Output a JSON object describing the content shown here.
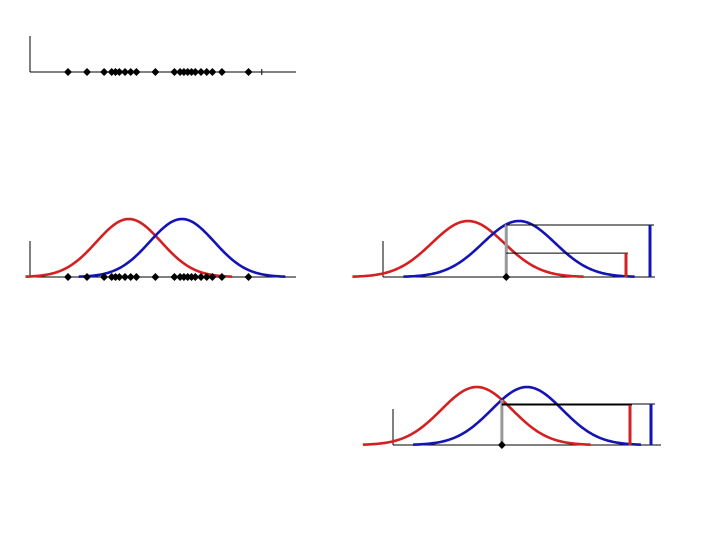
{
  "colors": {
    "background": "#ffffff",
    "axis": "#000000",
    "red_curve": "#d42020",
    "blue_curve": "#1414b4",
    "threshold_line": "#999999",
    "marker": "#000000"
  },
  "chart_data": [
    {
      "type": "scatter",
      "panel": "top-left",
      "description_key": "samples only",
      "points": [
        0.8,
        1.3,
        1.75,
        1.95,
        2.05,
        2.15,
        2.3,
        2.45,
        2.6,
        3.1,
        3.6,
        3.75,
        3.85,
        3.95,
        4.05,
        4.15,
        4.3,
        4.45,
        4.6,
        4.85,
        5.55
      ],
      "tick_positions": [
        0.8,
        5.9
      ],
      "xlim": [
        -0.2,
        6.8
      ]
    },
    {
      "type": "line",
      "panel": "middle-left",
      "series": [
        {
          "color_key": "red_curve",
          "mean": 2.4,
          "sd": 0.85
        },
        {
          "color_key": "blue_curve",
          "mean": 3.8,
          "sd": 0.85
        }
      ],
      "points": [
        0.8,
        1.3,
        1.75,
        1.95,
        2.05,
        2.15,
        2.3,
        2.45,
        2.6,
        3.1,
        3.6,
        3.75,
        3.85,
        3.95,
        4.05,
        4.15,
        4.3,
        4.45,
        4.6,
        4.85,
        5.55
      ],
      "xlim": [
        -0.2,
        6.8
      ]
    },
    {
      "type": "line",
      "panel": "middle-right",
      "series": [
        {
          "color_key": "red_curve",
          "mean": 2.4,
          "sd": 0.85
        },
        {
          "color_key": "blue_curve",
          "mean": 3.6,
          "sd": 0.85
        }
      ],
      "query_point": 3.3,
      "likelihood_bars": {
        "red": 0.44,
        "blue": 0.96
      },
      "xlim": [
        0.4,
        6.8
      ]
    },
    {
      "type": "line",
      "panel": "bottom-right",
      "series": [
        {
          "color_key": "red_curve",
          "mean": 2.4,
          "sd": 0.85
        },
        {
          "color_key": "blue_curve",
          "mean": 3.6,
          "sd": 0.85
        }
      ],
      "query_point": 3.0,
      "likelihood_bars": {
        "red": 0.78,
        "blue": 0.8
      },
      "xlim": [
        0.4,
        6.8
      ]
    }
  ]
}
